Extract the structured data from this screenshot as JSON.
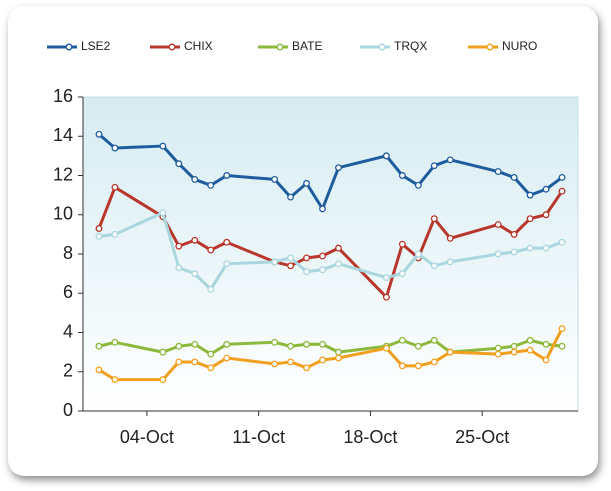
{
  "chart_data": {
    "type": "line",
    "x": [
      "01-Oct",
      "02-Oct",
      "05-Oct",
      "06-Oct",
      "07-Oct",
      "08-Oct",
      "09-Oct",
      "12-Oct",
      "13-Oct",
      "14-Oct",
      "15-Oct",
      "16-Oct",
      "19-Oct",
      "20-Oct",
      "21-Oct",
      "22-Oct",
      "23-Oct",
      "26-Oct",
      "27-Oct",
      "28-Oct",
      "29-Oct",
      "30-Oct"
    ],
    "series": [
      {
        "name": "LSE2",
        "color": "#1f5c9e",
        "values": [
          14.1,
          13.4,
          13.5,
          12.6,
          11.8,
          11.5,
          12.0,
          11.8,
          10.9,
          11.6,
          10.3,
          12.4,
          13.0,
          12.0,
          11.5,
          12.5,
          12.8,
          12.2,
          11.9,
          11.0,
          11.3,
          11.9
        ]
      },
      {
        "name": "CHIX",
        "color": "#b8362b",
        "values": [
          9.3,
          11.4,
          9.9,
          8.4,
          8.7,
          8.2,
          8.6,
          7.6,
          7.4,
          7.8,
          7.9,
          8.3,
          5.8,
          8.5,
          7.8,
          9.8,
          8.8,
          9.5,
          9.0,
          9.8,
          10.0,
          11.2
        ]
      },
      {
        "name": "BATE",
        "color": "#8cb83c",
        "values": [
          3.3,
          3.5,
          3.0,
          3.3,
          3.4,
          2.9,
          3.4,
          3.5,
          3.3,
          3.4,
          3.4,
          3.0,
          3.3,
          3.6,
          3.3,
          3.6,
          3.0,
          3.2,
          3.3,
          3.6,
          3.4,
          3.3
        ]
      },
      {
        "name": "TRQX",
        "color": "#a9d6df",
        "values": [
          8.9,
          9.0,
          10.1,
          7.3,
          7.0,
          6.2,
          7.5,
          7.6,
          7.8,
          7.1,
          7.2,
          7.5,
          6.8,
          7.0,
          8.0,
          7.4,
          7.6,
          8.0,
          8.1,
          8.3,
          8.3,
          8.6
        ]
      },
      {
        "name": "NURO",
        "color": "#f0a01e",
        "values": [
          2.1,
          1.6,
          1.6,
          2.5,
          2.5,
          2.2,
          2.7,
          2.4,
          2.5,
          2.2,
          2.6,
          2.7,
          3.2,
          2.3,
          2.3,
          2.5,
          3.0,
          2.9,
          3.0,
          3.1,
          2.6,
          4.2
        ]
      }
    ],
    "xlim": [
      "30-Sep",
      "31-Oct"
    ],
    "xticks": [
      "04-Oct",
      "11-Oct",
      "18-Oct",
      "25-Oct"
    ],
    "ylim": [
      0,
      16
    ],
    "yticks": [
      0,
      2,
      4,
      6,
      8,
      10,
      12,
      14,
      16
    ],
    "legend": "top"
  }
}
